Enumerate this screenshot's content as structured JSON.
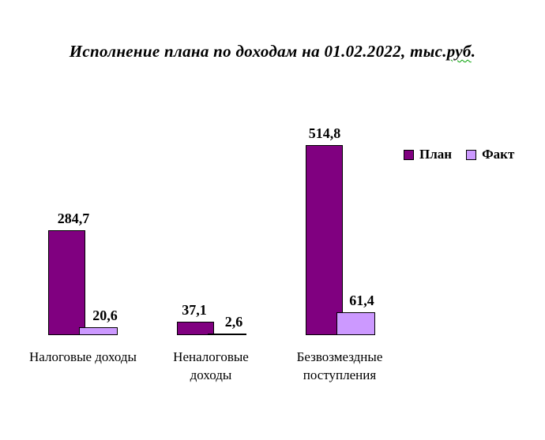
{
  "title": {
    "prefix": "Исполнение плана по доходам на 01.02.2022, тыс.",
    "spellchecked_word": "руб",
    "suffix": "."
  },
  "chart_data": {
    "type": "bar",
    "title": "Исполнение плана по доходам на 01.02.2022, тыс.руб.",
    "categories": [
      "Налоговые доходы",
      "Неналоговые доходы",
      "Безвозмездные поступления"
    ],
    "category_display": [
      "Налоговые доходы",
      "Неналоговые\nдоходы",
      "Безвозмездные\nпоступления"
    ],
    "series": [
      {
        "name": "План",
        "color": "#800080",
        "values": [
          284.7,
          37.1,
          514.8
        ],
        "labels": [
          "284,7",
          "37,1",
          "514,8"
        ]
      },
      {
        "name": "Факт",
        "color": "#CC99FF",
        "values": [
          20.6,
          2.6,
          61.4
        ],
        "labels": [
          "20,6",
          "2,6",
          "61,4"
        ]
      }
    ],
    "units": "тыс.руб.",
    "ylim": [
      0,
      560
    ],
    "grid": false,
    "axis_lines": false,
    "legend_position": "right",
    "background": "#ffffff"
  },
  "legend": {
    "plan_label": "План",
    "fact_label": "Факт"
  }
}
